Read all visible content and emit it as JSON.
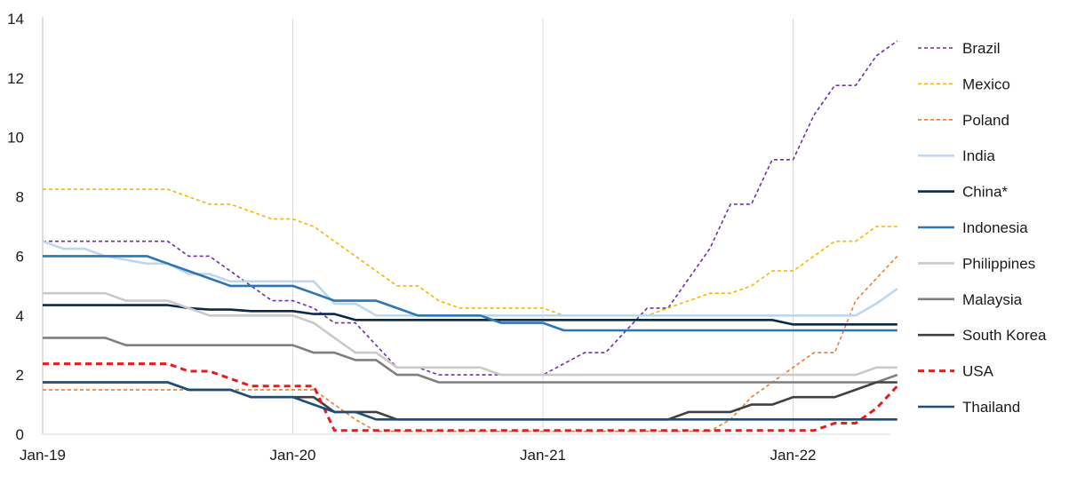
{
  "chart_data": {
    "type": "line",
    "title": "",
    "xlabel": "",
    "ylabel": "",
    "ylim": [
      0,
      14
    ],
    "yticks": [
      0,
      2,
      4,
      6,
      8,
      10,
      12,
      14
    ],
    "xlim": [
      "2019-01",
      "2022-05"
    ],
    "xticks": [
      "Jan-19",
      "Jan-20",
      "Jan-21",
      "Jan-22"
    ],
    "grid": "vertical",
    "legend_position": "right",
    "series": [
      {
        "name": "Brazil",
        "color": "#7030a0",
        "style": "dashed",
        "points": [
          [
            "2019-01",
            6.5
          ],
          [
            "2019-07",
            6.5
          ],
          [
            "2019-08",
            6.0
          ],
          [
            "2019-09",
            6.0
          ],
          [
            "2019-10",
            5.5
          ],
          [
            "2019-11",
            5.0
          ],
          [
            "2019-12",
            4.5
          ],
          [
            "2020-01",
            4.5
          ],
          [
            "2020-02",
            4.25
          ],
          [
            "2020-03",
            3.75
          ],
          [
            "2020-04",
            3.75
          ],
          [
            "2020-05",
            3.0
          ],
          [
            "2020-06",
            2.25
          ],
          [
            "2020-07",
            2.25
          ],
          [
            "2020-08",
            2.0
          ],
          [
            "2021-01",
            2.0
          ],
          [
            "2021-03",
            2.75
          ],
          [
            "2021-04",
            2.75
          ],
          [
            "2021-05",
            3.5
          ],
          [
            "2021-06",
            4.25
          ],
          [
            "2021-07",
            4.25
          ],
          [
            "2021-08",
            5.25
          ],
          [
            "2021-09",
            6.25
          ],
          [
            "2021-10",
            7.75
          ],
          [
            "2021-11",
            7.75
          ],
          [
            "2021-12",
            9.25
          ],
          [
            "2022-01",
            9.25
          ],
          [
            "2022-02",
            10.75
          ],
          [
            "2022-03",
            11.75
          ],
          [
            "2022-04",
            11.75
          ],
          [
            "2022-05",
            12.75
          ],
          [
            "2022-06",
            13.25
          ]
        ]
      },
      {
        "name": "Mexico",
        "color": "#f5b800",
        "style": "dashed",
        "points": [
          [
            "2019-01",
            8.25
          ],
          [
            "2019-07",
            8.25
          ],
          [
            "2019-09",
            7.75
          ],
          [
            "2019-10",
            7.75
          ],
          [
            "2019-12",
            7.25
          ],
          [
            "2020-01",
            7.25
          ],
          [
            "2020-02",
            7.0
          ],
          [
            "2020-03",
            6.5
          ],
          [
            "2020-04",
            6.0
          ],
          [
            "2020-05",
            5.5
          ],
          [
            "2020-06",
            5.0
          ],
          [
            "2020-07",
            5.0
          ],
          [
            "2020-08",
            4.5
          ],
          [
            "2020-09",
            4.25
          ],
          [
            "2021-01",
            4.25
          ],
          [
            "2021-02",
            4.0
          ],
          [
            "2021-06",
            4.0
          ],
          [
            "2021-07",
            4.25
          ],
          [
            "2021-08",
            4.5
          ],
          [
            "2021-09",
            4.75
          ],
          [
            "2021-10",
            4.75
          ],
          [
            "2021-11",
            5.0
          ],
          [
            "2021-12",
            5.5
          ],
          [
            "2022-01",
            5.5
          ],
          [
            "2022-02",
            6.0
          ],
          [
            "2022-03",
            6.5
          ],
          [
            "2022-04",
            6.5
          ],
          [
            "2022-05",
            7.0
          ],
          [
            "2022-06",
            7.0
          ]
        ]
      },
      {
        "name": "Poland",
        "color": "#ed7d31",
        "style": "dashed",
        "points": [
          [
            "2019-01",
            1.5
          ],
          [
            "2020-02",
            1.5
          ],
          [
            "2020-03",
            1.0
          ],
          [
            "2020-04",
            0.5
          ],
          [
            "2020-05",
            0.1
          ],
          [
            "2021-09",
            0.1
          ],
          [
            "2021-10",
            0.5
          ],
          [
            "2021-11",
            1.25
          ],
          [
            "2021-12",
            1.75
          ],
          [
            "2022-01",
            2.25
          ],
          [
            "2022-02",
            2.75
          ],
          [
            "2022-03",
            2.75
          ],
          [
            "2022-04",
            4.5
          ],
          [
            "2022-05",
            5.25
          ],
          [
            "2022-06",
            6.0
          ]
        ]
      },
      {
        "name": "India",
        "color": "#bdd7ee",
        "style": "solid",
        "points": [
          [
            "2019-01",
            6.5
          ],
          [
            "2019-02",
            6.25
          ],
          [
            "2019-03",
            6.25
          ],
          [
            "2019-04",
            6.0
          ],
          [
            "2019-06",
            5.75
          ],
          [
            "2019-07",
            5.75
          ],
          [
            "2019-08",
            5.4
          ],
          [
            "2019-09",
            5.4
          ],
          [
            "2019-10",
            5.15
          ],
          [
            "2020-02",
            5.15
          ],
          [
            "2020-03",
            4.4
          ],
          [
            "2020-04",
            4.4
          ],
          [
            "2020-05",
            4.0
          ],
          [
            "2022-04",
            4.0
          ],
          [
            "2022-05",
            4.4
          ],
          [
            "2022-06",
            4.9
          ]
        ]
      },
      {
        "name": "China*",
        "color": "#0b2a4a",
        "style": "solid",
        "points": [
          [
            "2019-01",
            4.35
          ],
          [
            "2019-07",
            4.35
          ],
          [
            "2019-08",
            4.25
          ],
          [
            "2019-09",
            4.2
          ],
          [
            "2019-10",
            4.2
          ],
          [
            "2019-11",
            4.15
          ],
          [
            "2020-01",
            4.15
          ],
          [
            "2020-02",
            4.05
          ],
          [
            "2020-03",
            4.05
          ],
          [
            "2020-04",
            3.85
          ],
          [
            "2021-12",
            3.85
          ],
          [
            "2022-01",
            3.7
          ],
          [
            "2022-06",
            3.7
          ]
        ]
      },
      {
        "name": "Indonesia",
        "color": "#2e75b6",
        "style": "solid",
        "points": [
          [
            "2019-01",
            6.0
          ],
          [
            "2019-06",
            6.0
          ],
          [
            "2019-07",
            5.75
          ],
          [
            "2019-08",
            5.5
          ],
          [
            "2019-09",
            5.25
          ],
          [
            "2019-10",
            5.0
          ],
          [
            "2020-01",
            5.0
          ],
          [
            "2020-02",
            4.75
          ],
          [
            "2020-03",
            4.5
          ],
          [
            "2020-05",
            4.5
          ],
          [
            "2020-06",
            4.25
          ],
          [
            "2020-07",
            4.0
          ],
          [
            "2020-10",
            4.0
          ],
          [
            "2020-11",
            3.75
          ],
          [
            "2021-01",
            3.75
          ],
          [
            "2021-02",
            3.5
          ],
          [
            "2022-06",
            3.5
          ]
        ]
      },
      {
        "name": "Philippines",
        "color": "#c9c9c9",
        "style": "solid",
        "points": [
          [
            "2019-01",
            4.75
          ],
          [
            "2019-04",
            4.75
          ],
          [
            "2019-05",
            4.5
          ],
          [
            "2019-07",
            4.5
          ],
          [
            "2019-08",
            4.25
          ],
          [
            "2019-09",
            4.0
          ],
          [
            "2020-01",
            4.0
          ],
          [
            "2020-02",
            3.75
          ],
          [
            "2020-03",
            3.25
          ],
          [
            "2020-04",
            2.75
          ],
          [
            "2020-05",
            2.75
          ],
          [
            "2020-06",
            2.25
          ],
          [
            "2020-10",
            2.25
          ],
          [
            "2020-11",
            2.0
          ],
          [
            "2022-04",
            2.0
          ],
          [
            "2022-05",
            2.25
          ],
          [
            "2022-06",
            2.25
          ]
        ]
      },
      {
        "name": "Malaysia",
        "color": "#7f7f7f",
        "style": "solid",
        "points": [
          [
            "2019-01",
            3.25
          ],
          [
            "2019-04",
            3.25
          ],
          [
            "2019-05",
            3.0
          ],
          [
            "2020-01",
            3.0
          ],
          [
            "2020-02",
            2.75
          ],
          [
            "2020-03",
            2.75
          ],
          [
            "2020-04",
            2.5
          ],
          [
            "2020-05",
            2.5
          ],
          [
            "2020-06",
            2.0
          ],
          [
            "2020-07",
            2.0
          ],
          [
            "2020-08",
            1.75
          ],
          [
            "2022-05",
            1.75
          ],
          [
            "2022-06",
            2.0
          ]
        ]
      },
      {
        "name": "South Korea",
        "color": "#404040",
        "style": "solid",
        "points": [
          [
            "2019-01",
            1.75
          ],
          [
            "2019-07",
            1.75
          ],
          [
            "2019-08",
            1.5
          ],
          [
            "2019-10",
            1.5
          ],
          [
            "2019-11",
            1.25
          ],
          [
            "2020-02",
            1.25
          ],
          [
            "2020-03",
            0.75
          ],
          [
            "2020-05",
            0.75
          ],
          [
            "2020-06",
            0.5
          ],
          [
            "2021-07",
            0.5
          ],
          [
            "2021-08",
            0.75
          ],
          [
            "2021-10",
            0.75
          ],
          [
            "2021-11",
            1.0
          ],
          [
            "2021-12",
            1.0
          ],
          [
            "2022-01",
            1.25
          ],
          [
            "2022-03",
            1.25
          ],
          [
            "2022-04",
            1.5
          ],
          [
            "2022-05",
            1.75
          ],
          [
            "2022-06",
            1.75
          ]
        ]
      },
      {
        "name": "USA",
        "color": "#e81c1c",
        "style": "bold-dashed",
        "points": [
          [
            "2019-01",
            2.375
          ],
          [
            "2019-07",
            2.375
          ],
          [
            "2019-08",
            2.125
          ],
          [
            "2019-09",
            2.125
          ],
          [
            "2019-10",
            1.875
          ],
          [
            "2019-11",
            1.625
          ],
          [
            "2020-02",
            1.625
          ],
          [
            "2020-03",
            0.125
          ],
          [
            "2022-02",
            0.125
          ],
          [
            "2022-03",
            0.375
          ],
          [
            "2022-04",
            0.375
          ],
          [
            "2022-05",
            0.875
          ],
          [
            "2022-06",
            1.625
          ]
        ]
      },
      {
        "name": "Thailand",
        "color": "#1f4e79",
        "style": "solid",
        "points": [
          [
            "2019-01",
            1.75
          ],
          [
            "2019-07",
            1.75
          ],
          [
            "2019-08",
            1.5
          ],
          [
            "2019-10",
            1.5
          ],
          [
            "2019-11",
            1.25
          ],
          [
            "2020-01",
            1.25
          ],
          [
            "2020-02",
            1.0
          ],
          [
            "2020-03",
            0.75
          ],
          [
            "2020-04",
            0.75
          ],
          [
            "2020-05",
            0.5
          ],
          [
            "2022-06",
            0.5
          ]
        ]
      }
    ]
  }
}
